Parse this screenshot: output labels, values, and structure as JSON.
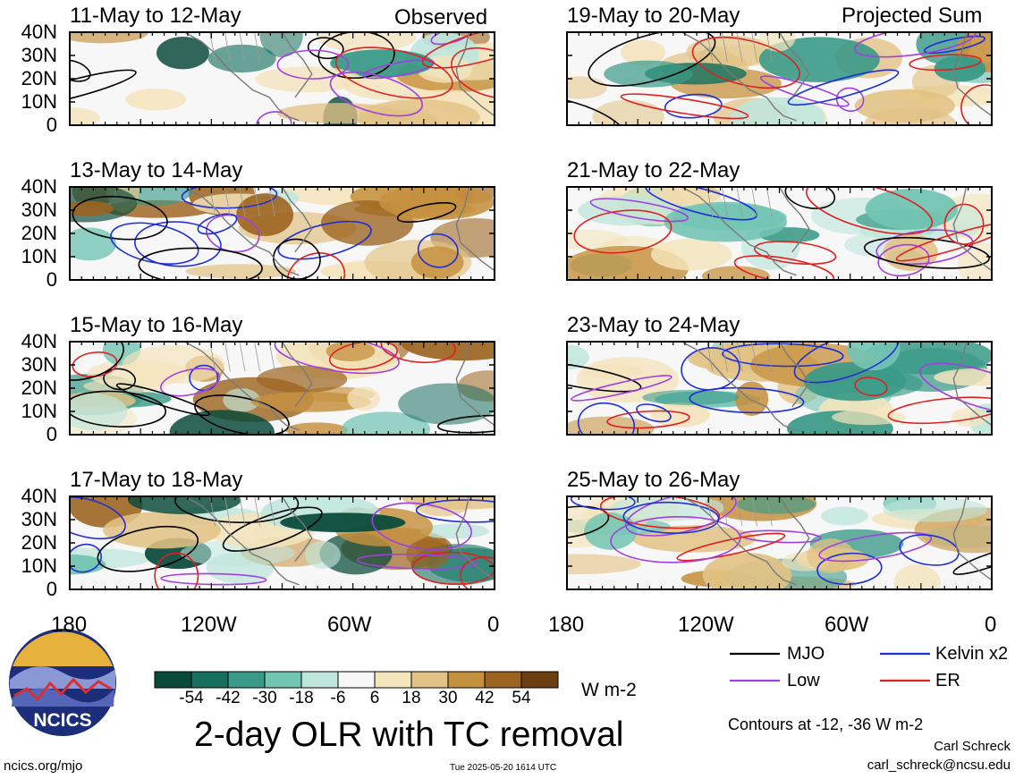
{
  "columns": [
    {
      "heading": "Observed",
      "panels": [
        {
          "title": "11-May to 12-May"
        },
        {
          "title": "13-May to 14-May"
        },
        {
          "title": "15-May to 16-May"
        },
        {
          "title": "17-May to 18-May"
        }
      ]
    },
    {
      "heading": "Projected Sum",
      "panels": [
        {
          "title": "19-May to 20-May"
        },
        {
          "title": "21-May to 22-May"
        },
        {
          "title": "23-May to 24-May"
        },
        {
          "title": "25-May to 26-May"
        }
      ]
    }
  ],
  "lat_labels": [
    "40N",
    "30N",
    "20N",
    "10N",
    "0"
  ],
  "lon_labels": [
    "180",
    "120W",
    "60W",
    "0"
  ],
  "colorbar": {
    "ticks": [
      "-54",
      "-42",
      "-30",
      "-18",
      "-6",
      "6",
      "18",
      "30",
      "42",
      "54"
    ],
    "colors": [
      "#0a4a3a",
      "#17705e",
      "#3a9a88",
      "#72c4b3",
      "#bfe6dc",
      "#f7f7f7",
      "#f4e4bc",
      "#e2c285",
      "#c6913f",
      "#9c6420",
      "#6b3f10"
    ],
    "units": "W m-2"
  },
  "title": "2-day OLR with TC removal",
  "legend": [
    {
      "label": "MJO",
      "color": "#000000"
    },
    {
      "label": "Kelvin x2",
      "color": "#1f2fd6"
    },
    {
      "label": "Low",
      "color": "#a040e0"
    },
    {
      "label": "ER",
      "color": "#e02020"
    }
  ],
  "contour_note": "Contours at -12, -36 W m-2",
  "author": "Carl Schreck",
  "email": "carl_schreck@ncsu.edu",
  "site": "ncics.org/mjo",
  "timestamp": "Tue 2025-05-20 1614 UTC",
  "logo_text": "NCICS"
}
